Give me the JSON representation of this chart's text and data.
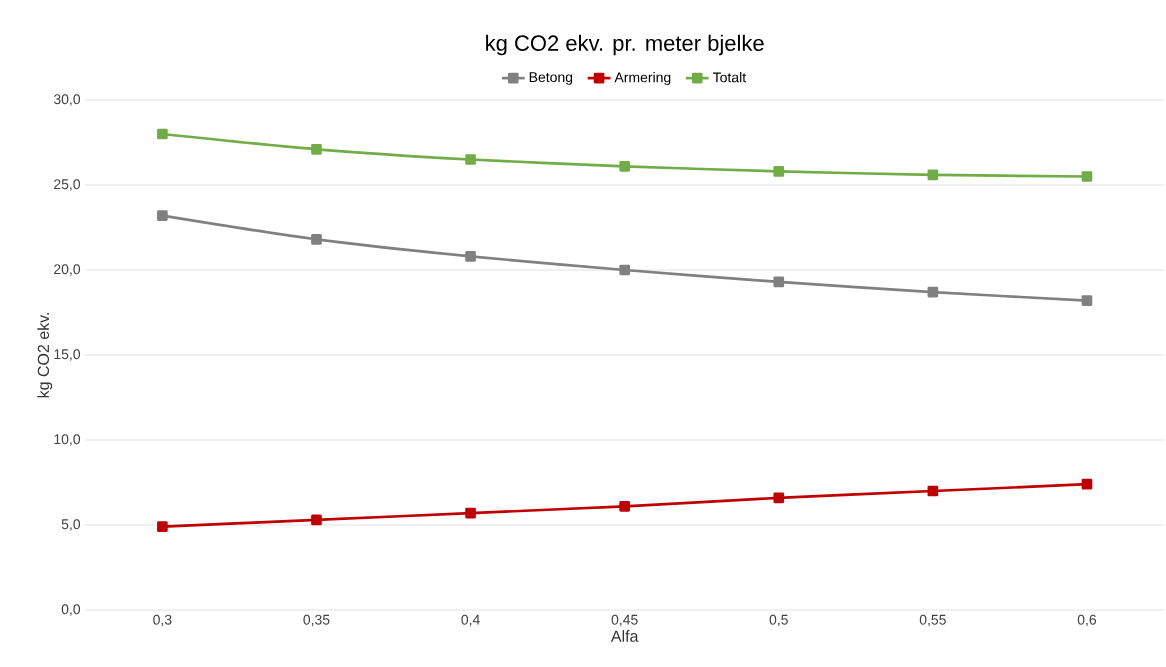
{
  "chart_data": {
    "type": "line",
    "title": "kg CO2 ekv. pr. meter bjelke",
    "xlabel": "Alfa",
    "ylabel": "kg CO2 ekv.",
    "categories": [
      "0,3",
      "0,35",
      "0,4",
      "0,45",
      "0,5",
      "0,55",
      "0,6"
    ],
    "series": [
      {
        "name": "Betong",
        "color": "#808080",
        "values": [
          23.2,
          21.8,
          20.8,
          20.0,
          19.3,
          18.7,
          18.2
        ]
      },
      {
        "name": "Armering",
        "color": "#c00000",
        "values": [
          4.9,
          5.3,
          5.7,
          6.1,
          6.6,
          7.0,
          7.4
        ]
      },
      {
        "name": "Totalt",
        "color": "#70ad47",
        "values": [
          28.0,
          27.1,
          26.5,
          26.1,
          25.8,
          25.6,
          25.5
        ]
      }
    ],
    "ylim": [
      0,
      30
    ],
    "yticks": [
      {
        "value": 0,
        "label": "0,0"
      },
      {
        "value": 5,
        "label": "5,0"
      },
      {
        "value": 10,
        "label": "10,0"
      },
      {
        "value": 15,
        "label": "15,0"
      },
      {
        "value": 20,
        "label": "20,0"
      },
      {
        "value": 25,
        "label": "25,0"
      },
      {
        "value": 30,
        "label": "30,0"
      }
    ],
    "grid": "y",
    "legend": "top",
    "marker": "square",
    "line_style": "solid"
  }
}
